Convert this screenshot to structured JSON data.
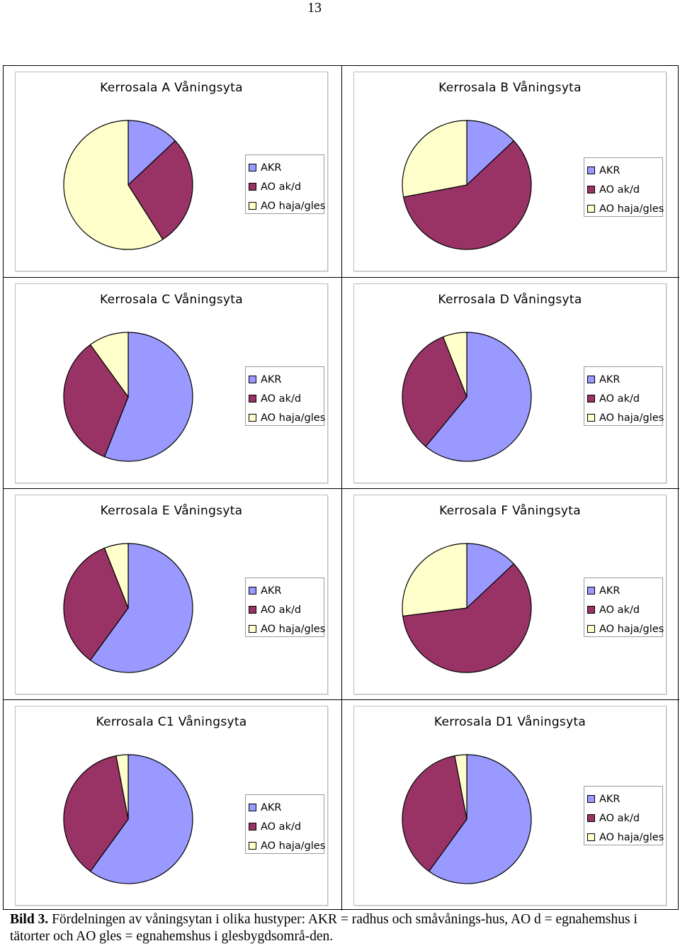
{
  "page_number": "13",
  "colors": {
    "AKR": "#9999ff",
    "AO ak/d": "#993366",
    "AO haja/gles": "#ffffcc"
  },
  "caption": {
    "label": "Bild 3.",
    "text": "Fördelningen av våningsytan i olika hustyper: AKR = radhus och småvånings-hus, AO d = egnahemshus i tätorter och AO gles = egnahemshus i glesbygdsområ-den."
  },
  "chart_data": [
    {
      "type": "pie",
      "title": "Kerrosala A Våningsyta",
      "categories": [
        "AKR",
        "AO ak/d",
        "AO haja/gles"
      ],
      "values": [
        13,
        28,
        59
      ],
      "legend_position": "right"
    },
    {
      "type": "pie",
      "title": "Kerrosala B Våningsyta",
      "categories": [
        "AKR",
        "AO ak/d",
        "AO haja/gles"
      ],
      "values": [
        13,
        59,
        28
      ],
      "legend_position": "right"
    },
    {
      "type": "pie",
      "title": "Kerrosala C Våningsyta",
      "categories": [
        "AKR",
        "AO ak/d",
        "AO haja/gles"
      ],
      "values": [
        56,
        34,
        10
      ],
      "legend_position": "right"
    },
    {
      "type": "pie",
      "title": "Kerrosala D Våningsyta",
      "categories": [
        "AKR",
        "AO ak/d",
        "AO haja/gles"
      ],
      "values": [
        61,
        33,
        6
      ],
      "legend_position": "right"
    },
    {
      "type": "pie",
      "title": "Kerrosala E Våningsyta",
      "categories": [
        "AKR",
        "AO ak/d",
        "AO haja/gles"
      ],
      "values": [
        60,
        34,
        6
      ],
      "legend_position": "right"
    },
    {
      "type": "pie",
      "title": "Kerrosala F Våningsyta",
      "categories": [
        "AKR",
        "AO ak/d",
        "AO haja/gles"
      ],
      "values": [
        13,
        60,
        27
      ],
      "legend_position": "right"
    },
    {
      "type": "pie",
      "title": "Kerrosala C1 Våningsyta",
      "categories": [
        "AKR",
        "AO ak/d",
        "AO haja/gles"
      ],
      "values": [
        60,
        37,
        3
      ],
      "legend_position": "right"
    },
    {
      "type": "pie",
      "title": "Kerrosala D1 Våningsyta",
      "categories": [
        "AKR",
        "AO ak/d",
        "AO haja/gles"
      ],
      "values": [
        60,
        37,
        3
      ],
      "legend_position": "right"
    }
  ]
}
